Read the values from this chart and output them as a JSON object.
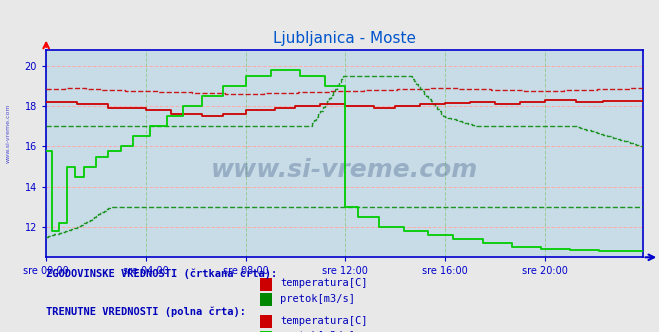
{
  "title": "Ljubljanica - Moste",
  "title_color": "#0055cc",
  "fig_bg_color": "#e8e8e8",
  "plot_bg_color": "#c8dce8",
  "xtick_labels": [
    "sre 00:00",
    "sre 04:00",
    "sre 08:00",
    "sre 12:00",
    "sre 16:00",
    "sre 20:00"
  ],
  "xtick_pos": [
    0,
    48,
    96,
    144,
    192,
    240
  ],
  "yticks": [
    12,
    14,
    16,
    18,
    20
  ],
  "ymin": 10.5,
  "ymax": 20.8,
  "xmin": 0,
  "xmax": 287,
  "n_points": 288,
  "watermark": "www.si-vreme.com",
  "watermark_color": "#1a3a6a",
  "watermark_alpha": 0.28,
  "legend_hist_label": "ZGODOVINSKE VREDNOSTI (črtkana črta):",
  "legend_curr_label": "TRENUTNE VREDNOSTI (polna črta):",
  "legend_text_color": "#0000bb",
  "temp_color": "#cc0000",
  "pretok_hist_color": "#008800",
  "pretok_curr_color": "#00cc00",
  "grid_h_color": "#ffaaaa",
  "grid_v_color": "#99cc99",
  "axis_color": "#0000cc",
  "tick_color": "#0000cc",
  "side_label": "www.si-vreme.com",
  "temp_hist_vals": [
    18.85,
    18.9,
    18.8,
    18.75,
    18.7,
    18.65,
    18.6,
    18.65,
    18.7,
    18.75,
    18.8,
    18.85,
    18.9,
    18.85,
    18.8,
    18.75,
    18.8,
    18.85,
    18.9
  ],
  "pretok_hist_upper_vals": [
    17.0,
    17.0,
    17.0,
    17.0,
    17.0,
    17.0,
    17.0,
    17.0,
    17.0,
    19.5,
    19.5,
    19.5,
    17.5,
    17.0,
    17.0,
    17.0,
    17.0,
    16.5,
    16.0
  ],
  "pretok_hist_lower_vals": [
    11.5,
    12.0,
    13.0,
    13.0,
    13.0,
    13.0,
    13.0,
    13.0,
    13.0,
    13.0,
    13.0,
    13.0,
    13.0,
    13.0,
    13.0,
    13.0,
    13.0,
    13.0,
    13.0
  ]
}
